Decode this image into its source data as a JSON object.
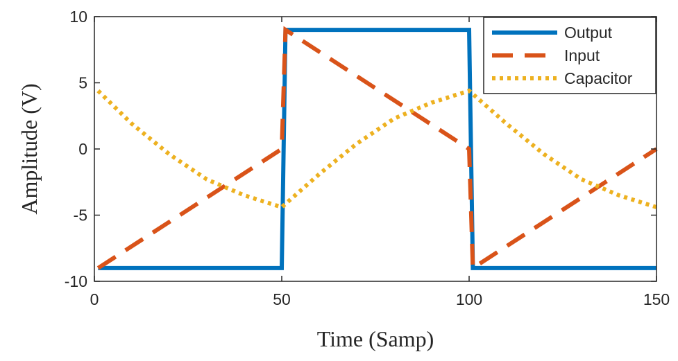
{
  "chart_data": {
    "type": "line",
    "xlabel": "Time (Samp)",
    "ylabel": "Amplitude (V)",
    "xlim": [
      0,
      150
    ],
    "ylim": [
      -10,
      10
    ],
    "xticks": [
      0,
      50,
      100,
      150
    ],
    "yticks": [
      -10,
      -5,
      0,
      5,
      10
    ],
    "xtick_labels": [
      "0",
      "50",
      "100",
      "150"
    ],
    "ytick_labels": [
      "-10",
      "-5",
      "0",
      "5",
      "10"
    ],
    "grid": false,
    "legend_position": "top-right",
    "series": [
      {
        "name": "Output",
        "color": "#0072BD",
        "style": "solid",
        "x": [
          1,
          50,
          51,
          100,
          101,
          150
        ],
        "y": [
          -9,
          -9,
          9,
          9,
          -9,
          -9
        ]
      },
      {
        "name": "Input",
        "color": "#D95319",
        "style": "dashed",
        "x": [
          1,
          50,
          51,
          100,
          101,
          150
        ],
        "y": [
          -9,
          0,
          9,
          0,
          -9,
          0
        ]
      },
      {
        "name": "Capacitor",
        "color": "#EDB120",
        "style": "dotted",
        "x": [
          1,
          10,
          20,
          30,
          40,
          50,
          60,
          70,
          80,
          90,
          100,
          110,
          120,
          130,
          140,
          150
        ],
        "y": [
          4.4,
          1.9,
          -0.4,
          -2.3,
          -3.5,
          -4.4,
          -1.9,
          0.4,
          2.3,
          3.5,
          4.4,
          1.9,
          -0.4,
          -2.3,
          -3.5,
          -4.4
        ]
      }
    ]
  }
}
